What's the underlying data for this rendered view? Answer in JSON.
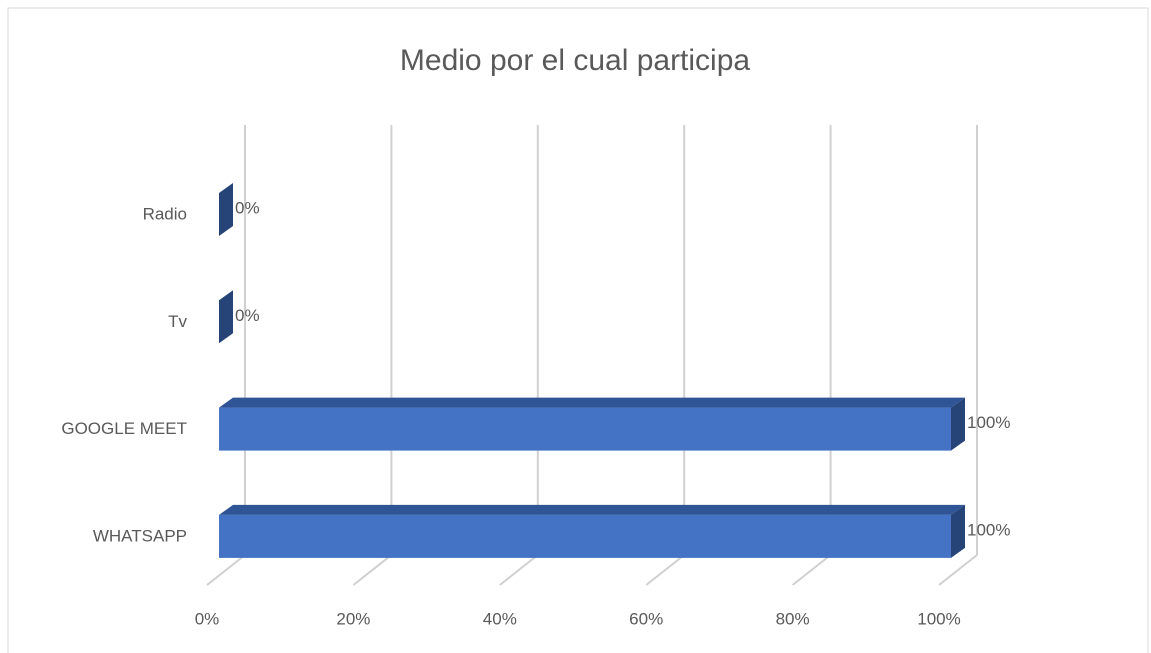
{
  "chart_data": {
    "type": "bar3d_horizontal",
    "title": "Medio por el cual participa",
    "categories": [
      "Radio",
      "Tv",
      "GOOGLE MEET",
      "WHATSAPP"
    ],
    "values": [
      0,
      0,
      100,
      100
    ],
    "value_labels": [
      "0%",
      "0%",
      "100%",
      "100%"
    ],
    "color": "#4472c4",
    "xlim": [
      0,
      100
    ],
    "xticks": [
      {
        "value": 0,
        "label": "0%"
      },
      {
        "value": 20,
        "label": "20%"
      },
      {
        "value": 40,
        "label": "40%"
      },
      {
        "value": 60,
        "label": "60%"
      },
      {
        "value": 80,
        "label": "80%"
      },
      {
        "value": 100,
        "label": "100%"
      }
    ],
    "grid": true
  }
}
